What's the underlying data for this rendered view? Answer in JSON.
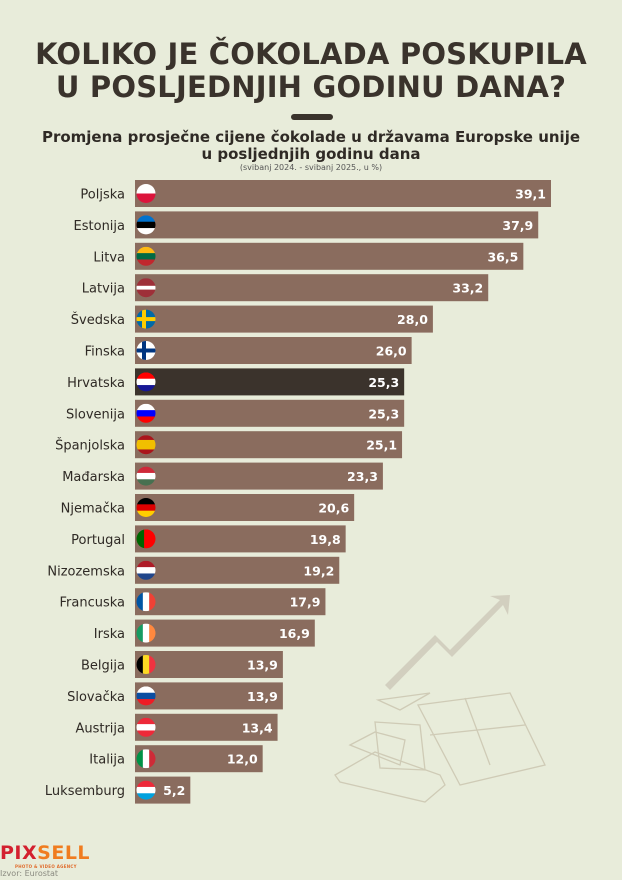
{
  "title_line1": "KOLIKO JE ČOKOLADA POSKUPILA",
  "title_line2": "U POSLJEDNJIH GODINU DANA?",
  "chart_data": {
    "type": "bar",
    "orientation": "horizontal",
    "title": "Promjena prosječne cijene čokolade u državama Europske unije u posljednjih godinu dana",
    "title_line1": "Promjena prosječne cijene čokolade u državama Europske unije",
    "title_line2": "u posljednjih godinu dana",
    "subtitle": "(svibanj 2024. - svibanj 2025., u %)",
    "categories": [
      "Poljska",
      "Estonija",
      "Litva",
      "Latvija",
      "Švedska",
      "Finska",
      "Hrvatska",
      "Slovenija",
      "Španjolska",
      "Mađarska",
      "Njemačka",
      "Portugal",
      "Nizozemska",
      "Francuska",
      "Irska",
      "Belgija",
      "Slovačka",
      "Austrija",
      "Italija",
      "Luksemburg"
    ],
    "values": [
      39.1,
      37.9,
      36.5,
      33.2,
      28.0,
      26.0,
      25.3,
      25.3,
      25.1,
      23.3,
      20.6,
      19.8,
      19.2,
      17.9,
      16.9,
      13.9,
      13.9,
      13.4,
      12.0,
      5.2
    ],
    "value_labels": [
      "39,1",
      "37,9",
      "36,5",
      "33,2",
      "28,0",
      "26,0",
      "25,3",
      "25,3",
      "25,1",
      "23,3",
      "20,6",
      "19,8",
      "19,2",
      "17,9",
      "16,9",
      "13,9",
      "13,9",
      "13,4",
      "12,0",
      "5,2"
    ],
    "highlight": "Hrvatska",
    "bar_color": "#8a6c5e",
    "highlight_color": "#3b332c",
    "grid": false,
    "legend": "none"
  },
  "flags": [
    {
      "type": "h",
      "colors": [
        "#ffffff",
        "#dc143c"
      ]
    },
    {
      "type": "h",
      "colors": [
        "#0072ce",
        "#000000",
        "#ffffff"
      ]
    },
    {
      "type": "h",
      "colors": [
        "#fdb913",
        "#006a44",
        "#c1272d"
      ]
    },
    {
      "type": "h",
      "colors": [
        "#9e3039",
        "#ffffff",
        "#9e3039"
      ],
      "ratio": [
        2,
        1,
        2
      ]
    },
    {
      "type": "cross",
      "colors": [
        "#006aa7",
        "#fecc00"
      ]
    },
    {
      "type": "cross",
      "colors": [
        "#ffffff",
        "#003580"
      ]
    },
    {
      "type": "h",
      "colors": [
        "#ff0000",
        "#ffffff",
        "#171796"
      ]
    },
    {
      "type": "h",
      "colors": [
        "#ffffff",
        "#0000ff",
        "#ff0000"
      ]
    },
    {
      "type": "h",
      "colors": [
        "#aa151b",
        "#f1bf00",
        "#aa151b"
      ],
      "ratio": [
        1,
        2,
        1
      ]
    },
    {
      "type": "h",
      "colors": [
        "#ce2939",
        "#ffffff",
        "#477050"
      ]
    },
    {
      "type": "h",
      "colors": [
        "#000000",
        "#dd0000",
        "#ffce00"
      ]
    },
    {
      "type": "v",
      "colors": [
        "#006600",
        "#ff0000"
      ],
      "ratio": [
        2,
        3
      ]
    },
    {
      "type": "h",
      "colors": [
        "#ae1c28",
        "#ffffff",
        "#21468b"
      ]
    },
    {
      "type": "v",
      "colors": [
        "#0055a4",
        "#ffffff",
        "#ef4135"
      ]
    },
    {
      "type": "v",
      "colors": [
        "#169b62",
        "#ffffff",
        "#ff883e"
      ]
    },
    {
      "type": "v",
      "colors": [
        "#000000",
        "#fdda24",
        "#ef3340"
      ]
    },
    {
      "type": "h",
      "colors": [
        "#ffffff",
        "#0b4ea2",
        "#ee1c25"
      ]
    },
    {
      "type": "h",
      "colors": [
        "#ed2939",
        "#ffffff",
        "#ed2939"
      ]
    },
    {
      "type": "v",
      "colors": [
        "#009246",
        "#ffffff",
        "#ce2b37"
      ]
    },
    {
      "type": "h",
      "colors": [
        "#ed2939",
        "#ffffff",
        "#00a1de"
      ]
    }
  ],
  "logo": {
    "text_a": "PIX",
    "text_b": "SELL",
    "tagline": "PHOTO & VIDEO AGENCY"
  },
  "source": "Izvor: Eurostat"
}
